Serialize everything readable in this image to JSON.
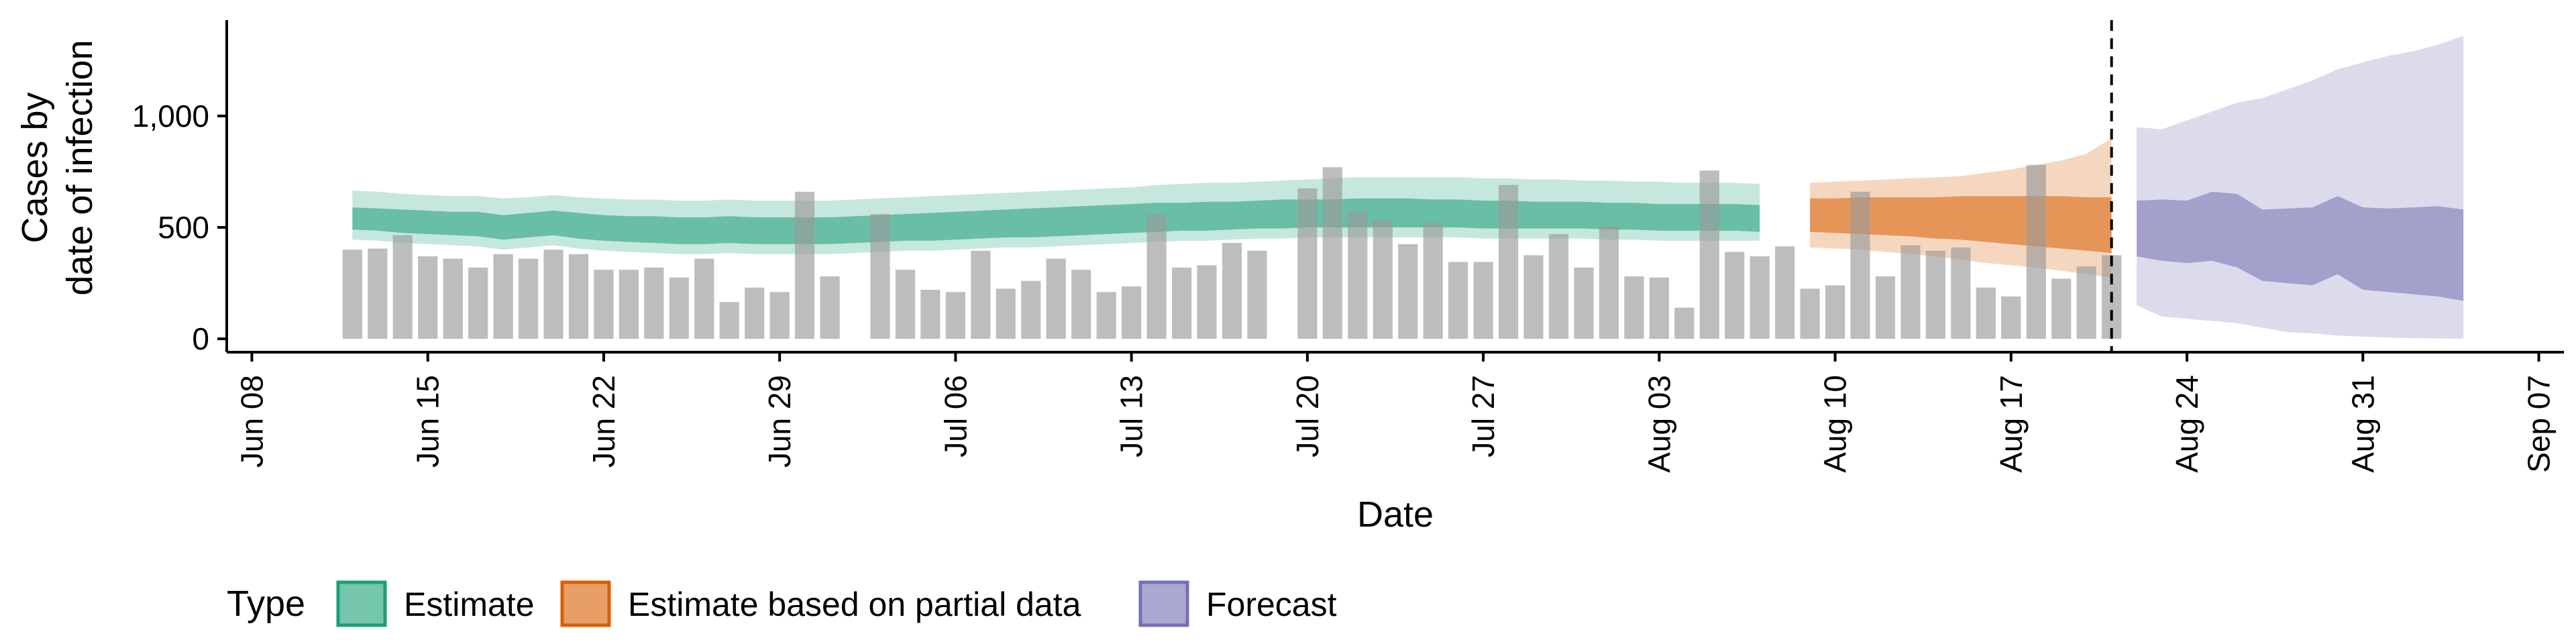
{
  "chart_data": {
    "type": "bar",
    "xlabel": "Date",
    "ylabel_lines": [
      "Cases by",
      "date of infection"
    ],
    "x_range": [
      "2020-06-07",
      "2020-09-08"
    ],
    "ylim": [
      -60,
      1430
    ],
    "y_ticks": [
      {
        "value": 0,
        "label": "0"
      },
      {
        "value": 500,
        "label": "500"
      },
      {
        "value": 1000,
        "label": "1,000"
      }
    ],
    "x_ticks": [
      {
        "date": "2020-06-08",
        "label": "Jun 08"
      },
      {
        "date": "2020-06-15",
        "label": "Jun 15"
      },
      {
        "date": "2020-06-22",
        "label": "Jun 22"
      },
      {
        "date": "2020-06-29",
        "label": "Jun 29"
      },
      {
        "date": "2020-07-06",
        "label": "Jul 06"
      },
      {
        "date": "2020-07-13",
        "label": "Jul 13"
      },
      {
        "date": "2020-07-20",
        "label": "Jul 20"
      },
      {
        "date": "2020-07-27",
        "label": "Jul 27"
      },
      {
        "date": "2020-08-03",
        "label": "Aug 03"
      },
      {
        "date": "2020-08-10",
        "label": "Aug 10"
      },
      {
        "date": "2020-08-17",
        "label": "Aug 17"
      },
      {
        "date": "2020-08-24",
        "label": "Aug 24"
      },
      {
        "date": "2020-08-31",
        "label": "Aug 31"
      },
      {
        "date": "2020-09-07",
        "label": "Sep 07"
      }
    ],
    "reference_line_date": "2020-08-21",
    "bars": {
      "start_date": "2020-06-12",
      "values": [
        400,
        405,
        465,
        370,
        360,
        320,
        380,
        360,
        400,
        380,
        310,
        310,
        320,
        275,
        360,
        165,
        230,
        210,
        660,
        280,
        null,
        560,
        310,
        220,
        210,
        395,
        225,
        260,
        360,
        310,
        210,
        235,
        560,
        320,
        330,
        430,
        395,
        null,
        675,
        770,
        570,
        535,
        425,
        520,
        345,
        345,
        690,
        375,
        470,
        320,
        505,
        280,
        275,
        140,
        755,
        390,
        370,
        415,
        225,
        240,
        660,
        280,
        420,
        395,
        410,
        230,
        190,
        780,
        270,
        325,
        375
      ]
    },
    "series": [
      {
        "name": "Estimate",
        "color": "#1b9e77",
        "start_date": "2020-06-12",
        "lower90": [
          445,
          440,
          430,
          425,
          420,
          415,
          400,
          410,
          420,
          405,
          395,
          390,
          385,
          380,
          380,
          385,
          380,
          380,
          380,
          380,
          385,
          390,
          395,
          395,
          400,
          405,
          410,
          410,
          415,
          420,
          425,
          430,
          435,
          440,
          440,
          445,
          450,
          450,
          455,
          455,
          455,
          455,
          455,
          455,
          455,
          450,
          450,
          450,
          450,
          450,
          445,
          445,
          440,
          440,
          440,
          440,
          440
        ],
        "upper90": [
          665,
          660,
          650,
          645,
          640,
          640,
          630,
          635,
          645,
          635,
          630,
          625,
          625,
          620,
          620,
          625,
          620,
          620,
          620,
          620,
          625,
          630,
          635,
          640,
          645,
          650,
          655,
          660,
          665,
          670,
          675,
          680,
          690,
          695,
          700,
          700,
          705,
          710,
          715,
          720,
          725,
          725,
          725,
          725,
          725,
          720,
          720,
          715,
          715,
          710,
          710,
          705,
          705,
          700,
          700,
          700,
          695
        ],
        "lower50": [
          490,
          485,
          475,
          470,
          465,
          460,
          445,
          455,
          465,
          450,
          440,
          435,
          430,
          425,
          425,
          430,
          425,
          425,
          425,
          425,
          430,
          435,
          440,
          440,
          445,
          450,
          455,
          455,
          460,
          465,
          470,
          475,
          480,
          485,
          485,
          490,
          495,
          495,
          500,
          500,
          500,
          500,
          500,
          500,
          500,
          495,
          495,
          495,
          495,
          495,
          490,
          490,
          485,
          485,
          485,
          485,
          480
        ],
        "upper50": [
          590,
          585,
          580,
          575,
          570,
          570,
          555,
          565,
          575,
          565,
          555,
          550,
          550,
          545,
          545,
          550,
          545,
          545,
          545,
          545,
          550,
          555,
          560,
          565,
          570,
          575,
          580,
          585,
          590,
          595,
          600,
          605,
          610,
          610,
          615,
          615,
          620,
          625,
          625,
          625,
          630,
          630,
          630,
          625,
          625,
          620,
          620,
          615,
          615,
          615,
          610,
          610,
          605,
          605,
          605,
          605,
          600
        ]
      },
      {
        "name": "Estimate based on partial data",
        "color": "#d95f02",
        "start_date": "2020-08-09",
        "lower90": [
          410,
          405,
          400,
          390,
          380,
          370,
          355,
          340,
          330,
          320,
          305,
          290,
          275
        ],
        "upper90": [
          700,
          705,
          710,
          715,
          720,
          725,
          730,
          745,
          760,
          780,
          800,
          830,
          900
        ],
        "lower50": [
          480,
          475,
          470,
          465,
          460,
          450,
          445,
          435,
          425,
          415,
          405,
          395,
          385
        ],
        "upper50": [
          630,
          630,
          635,
          635,
          635,
          635,
          640,
          640,
          640,
          640,
          640,
          635,
          635
        ]
      },
      {
        "name": "Forecast",
        "color": "#7570b3",
        "start_date": "2020-08-22",
        "lower90": [
          150,
          100,
          90,
          80,
          70,
          50,
          30,
          25,
          15,
          10,
          5,
          3,
          2,
          0
        ],
        "upper90": [
          950,
          940,
          980,
          1020,
          1060,
          1080,
          1120,
          1160,
          1210,
          1240,
          1270,
          1290,
          1320,
          1360
        ],
        "lower50": [
          370,
          350,
          340,
          350,
          320,
          260,
          250,
          240,
          290,
          220,
          210,
          200,
          190,
          170
        ],
        "upper50": [
          620,
          625,
          620,
          660,
          650,
          580,
          585,
          590,
          640,
          590,
          585,
          590,
          595,
          580
        ]
      }
    ],
    "legend": {
      "title": "Type",
      "position": "bottom",
      "items": [
        "Estimate",
        "Estimate based on partial data",
        "Forecast"
      ]
    },
    "grid": false
  }
}
